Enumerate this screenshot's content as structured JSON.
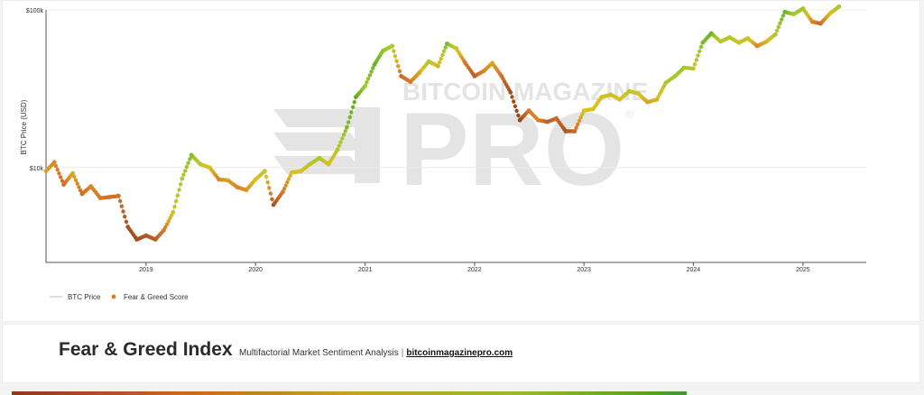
{
  "colors": {
    "price_line": "#bbbbbb",
    "fear_extreme": "#8b3a1a",
    "fear": "#d8782a",
    "neutral": "#d8c020",
    "greed": "#a8c830",
    "greed_extreme": "#48a820",
    "watermark": "#e4e4e4"
  },
  "watermark": {
    "top": "BITCOIN MAGAZINE",
    "main": "PRO",
    "reg": "®"
  },
  "footer": {
    "title": "Fear & Greed Index",
    "subtitle": "Multifactorial Market Sentiment Analysis",
    "separator": "|",
    "link": "bitcoinmagazinepro.com"
  },
  "chart_data": {
    "type": "scatter",
    "title": "",
    "xlabel": "",
    "ylabel": "BTC Price (USD)",
    "y_scale": "log",
    "ylim": [
      2500,
      100000
    ],
    "xlim": [
      "2018-02-01",
      "2025-07-31"
    ],
    "y_ticks": [
      {
        "value": 10000,
        "label": "$10k"
      },
      {
        "value": 100000,
        "label": "$100k"
      }
    ],
    "x_ticks": [
      "2019",
      "2020",
      "2021",
      "2022",
      "2023",
      "2024",
      "2025"
    ],
    "grid": true,
    "legend": {
      "position": "bottom-left",
      "entries": [
        "BTC Price",
        "Fear & Greed Score"
      ]
    },
    "series": [
      {
        "name": "BTC Price",
        "kind": "line",
        "x": [
          "2018-02-01",
          "2018-03-01",
          "2018-04-01",
          "2018-05-01",
          "2018-06-01",
          "2018-07-01",
          "2018-08-01",
          "2018-09-01",
          "2018-10-01",
          "2018-11-01",
          "2018-12-01",
          "2019-01-01",
          "2019-02-01",
          "2019-03-01",
          "2019-04-01",
          "2019-05-01",
          "2019-06-01",
          "2019-07-01",
          "2019-08-01",
          "2019-09-01",
          "2019-10-01",
          "2019-11-01",
          "2019-12-01",
          "2020-01-01",
          "2020-02-01",
          "2020-03-01",
          "2020-04-01",
          "2020-05-01",
          "2020-06-01",
          "2020-07-01",
          "2020-08-01",
          "2020-09-01",
          "2020-10-01",
          "2020-11-01",
          "2020-12-01",
          "2021-01-01",
          "2021-02-01",
          "2021-03-01",
          "2021-04-01",
          "2021-05-01",
          "2021-06-01",
          "2021-07-01",
          "2021-08-01",
          "2021-09-01",
          "2021-10-01",
          "2021-11-01",
          "2021-12-01",
          "2022-01-01",
          "2022-02-01",
          "2022-03-01",
          "2022-04-01",
          "2022-05-01",
          "2022-06-01",
          "2022-07-01",
          "2022-08-01",
          "2022-09-01",
          "2022-10-01",
          "2022-11-01",
          "2022-12-01",
          "2023-01-01",
          "2023-02-01",
          "2023-03-01",
          "2023-04-01",
          "2023-05-01",
          "2023-06-01",
          "2023-07-01",
          "2023-08-01",
          "2023-09-01",
          "2023-10-01",
          "2023-11-01",
          "2023-12-01",
          "2024-01-01",
          "2024-02-01",
          "2024-03-01",
          "2024-04-01",
          "2024-05-01",
          "2024-06-01",
          "2024-07-01",
          "2024-08-01",
          "2024-09-01",
          "2024-10-01",
          "2024-11-01",
          "2024-12-01",
          "2025-01-01",
          "2025-02-01",
          "2025-03-01",
          "2025-04-01",
          "2025-05-01"
        ],
        "values": [
          9500,
          10800,
          7800,
          9200,
          6800,
          7600,
          6400,
          6500,
          6600,
          4200,
          3500,
          3700,
          3500,
          4000,
          5200,
          8500,
          12000,
          10500,
          10000,
          8400,
          8300,
          7500,
          7200,
          8400,
          9500,
          5800,
          7000,
          9300,
          9500,
          10500,
          11500,
          10500,
          13000,
          18000,
          28000,
          33000,
          45000,
          55000,
          59000,
          38000,
          35000,
          40000,
          47000,
          44000,
          61000,
          57000,
          46000,
          38000,
          41000,
          46000,
          38000,
          30000,
          20000,
          23000,
          20000,
          19500,
          20500,
          17000,
          17000,
          23000,
          23500,
          28000,
          29000,
          27000,
          30500,
          29500,
          26000,
          27000,
          34500,
          38000,
          43000,
          42500,
          62000,
          71000,
          63000,
          67000,
          62000,
          66000,
          59000,
          63000,
          70000,
          97000,
          94000,
          102000,
          84000,
          82000,
          95000,
          105000
        ],
        "sentiment": [
          0.4,
          0.3,
          0.2,
          0.42,
          0.2,
          0.3,
          0.25,
          0.22,
          0.22,
          0.1,
          0.08,
          0.12,
          0.15,
          0.25,
          0.55,
          0.7,
          0.85,
          0.6,
          0.5,
          0.3,
          0.4,
          0.3,
          0.35,
          0.5,
          0.6,
          0.1,
          0.25,
          0.5,
          0.5,
          0.65,
          0.75,
          0.5,
          0.65,
          0.85,
          0.95,
          0.75,
          0.92,
          0.8,
          0.72,
          0.2,
          0.25,
          0.4,
          0.7,
          0.45,
          0.88,
          0.6,
          0.25,
          0.15,
          0.3,
          0.4,
          0.22,
          0.08,
          0.05,
          0.25,
          0.3,
          0.15,
          0.2,
          0.1,
          0.2,
          0.5,
          0.5,
          0.5,
          0.6,
          0.5,
          0.62,
          0.55,
          0.4,
          0.45,
          0.7,
          0.75,
          0.78,
          0.6,
          0.85,
          0.9,
          0.6,
          0.7,
          0.55,
          0.62,
          0.3,
          0.45,
          0.7,
          0.92,
          0.75,
          0.78,
          0.3,
          0.2,
          0.5,
          0.72
        ]
      },
      {
        "name": "Fear & Greed Score",
        "kind": "markers",
        "color_scale": [
          "#8b3a1a",
          "#d8782a",
          "#d8c020",
          "#a8c830",
          "#48a820"
        ]
      }
    ]
  }
}
